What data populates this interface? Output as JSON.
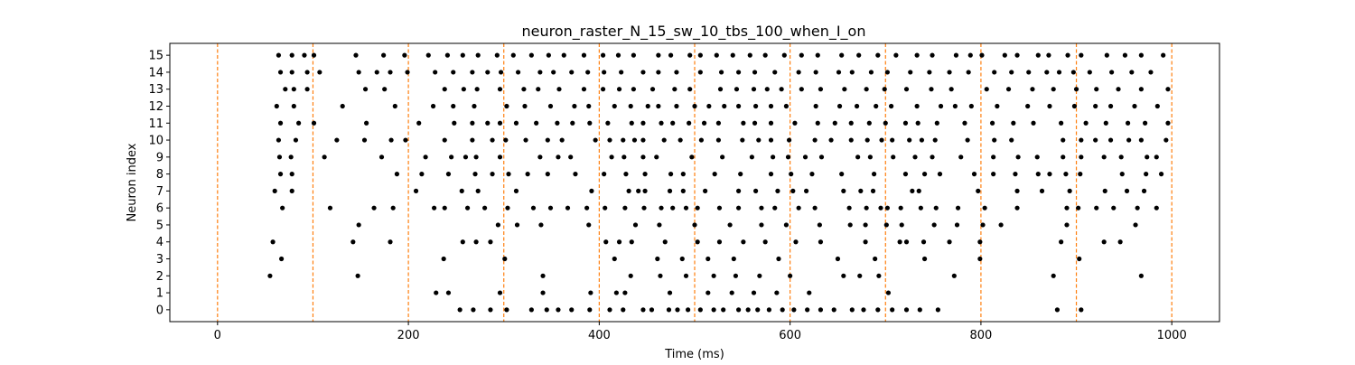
{
  "chart_data": {
    "type": "scatter",
    "title": "neuron_raster_N_15_sw_10_tbs_100_when_I_on",
    "xlabel": "Time (ms)",
    "ylabel": "Neuron index",
    "xlim": [
      -50,
      1050
    ],
    "ylim": [
      -0.7,
      15.7
    ],
    "x_ticks": [
      0,
      200,
      400,
      600,
      800,
      1000
    ],
    "y_ticks": [
      0,
      1,
      2,
      3,
      4,
      5,
      6,
      7,
      8,
      9,
      10,
      11,
      12,
      13,
      14,
      15
    ],
    "grid": false,
    "legend": "none",
    "vertical_lines": [
      0,
      100,
      200,
      300,
      400,
      500,
      600,
      700,
      800,
      900,
      1000
    ],
    "colors": {
      "points": "#000000",
      "vertical_lines": "#ff7f0e",
      "axes": "#000000"
    },
    "series": [
      {
        "values": [
          {
            "neuron": 0,
            "times": [
              254,
              268,
              286,
              303,
              329,
              345,
              357,
              371,
              390,
              411,
              425,
              446,
              455,
              473,
              482,
              493,
              506,
              520,
              530,
              546,
              556,
              566,
              578,
              592,
              604,
              618,
              632,
              646,
              665,
              677,
              692,
              707,
              722,
              736,
              755,
              880,
              905
            ]
          },
          {
            "neuron": 1,
            "times": [
              229,
              242,
              296,
              341,
              391,
              418,
              427,
              474,
              514,
              539,
              562,
              586,
              620,
              703
            ]
          },
          {
            "neuron": 2,
            "times": [
              55,
              147,
              341,
              433,
              464,
              491,
              520,
              543,
              568,
              600,
              656,
              673,
              693,
              772,
              876,
              968
            ]
          },
          {
            "neuron": 3,
            "times": [
              67,
              237,
              301,
              416,
              461,
              487,
              514,
              541,
              588,
              650,
              689,
              741,
              799,
              903
            ]
          },
          {
            "neuron": 4,
            "times": [
              58,
              142,
              181,
              257,
              271,
              286,
              407,
              421,
              434,
              469,
              503,
              526,
              551,
              574,
              606,
              632,
              679,
              715,
              722,
              740,
              767,
              799,
              884,
              929,
              946
            ]
          },
          {
            "neuron": 5,
            "times": [
              148,
              294,
              314,
              339,
              389,
              438,
              463,
              500,
              537,
              570,
              596,
              631,
              663,
              679,
              701,
              717,
              751,
              775,
              802,
              821,
              890,
              962
            ]
          },
          {
            "neuron": 6,
            "times": [
              68,
              118,
              164,
              184,
              227,
              238,
              262,
              280,
              304,
              331,
              349,
              367,
              387,
              406,
              427,
              447,
              465,
              477,
              491,
              503,
              526,
              546,
              570,
              584,
              609,
              626,
              662,
              680,
              695,
              702,
              716,
              737,
              753,
              776,
              804,
              838,
              890,
              902,
              921,
              939,
              964,
              984
            ]
          },
          {
            "neuron": 7,
            "times": [
              60,
              78,
              208,
              256,
              273,
              313,
              392,
              431,
              441,
              448,
              474,
              488,
              511,
              546,
              564,
              587,
              603,
              617,
              656,
              674,
              687,
              728,
              735,
              797,
              838,
              864,
              893,
              930,
              953,
              971
            ]
          },
          {
            "neuron": 8,
            "times": [
              66,
              78,
              188,
              214,
              242,
              270,
              288,
              305,
              325,
              346,
              375,
              405,
              428,
              448,
              475,
              488,
              521,
              548,
              580,
              601,
              623,
              654,
              688,
              721,
              741,
              757,
              793,
              813,
              836,
              860,
              872,
              889,
              904,
              948,
              973,
              989
            ]
          },
          {
            "neuron": 9,
            "times": [
              65,
              77,
              112,
              172,
              218,
              245,
              260,
              271,
              296,
              338,
              357,
              370,
              413,
              426,
              446,
              460,
              497,
              529,
              560,
              582,
              598,
              616,
              633,
              671,
              684,
              708,
              731,
              749,
              779,
              813,
              839,
              859,
              886,
              905,
              929,
              947,
              974,
              984
            ]
          },
          {
            "neuron": 10,
            "times": [
              64,
              82,
              125,
              154,
              182,
              197,
              238,
              267,
              288,
              302,
              323,
              346,
              361,
              396,
              411,
              425,
              437,
              446,
              468,
              485,
              507,
              525,
              550,
              567,
              580,
              599,
              626,
              643,
              664,
              681,
              696,
              707,
              725,
              738,
              752,
              786,
              814,
              832,
              886,
              905,
              920,
              936,
              955,
              968,
              994
            ]
          },
          {
            "neuron": 11,
            "times": [
              66,
              85,
              101,
              156,
              211,
              248,
              267,
              283,
              296,
              313,
              334,
              356,
              372,
              390,
              409,
              434,
              446,
              465,
              477,
              494,
              510,
              525,
              551,
              563,
              580,
              605,
              629,
              647,
              664,
              683,
              700,
              721,
              734,
              754,
              783,
              812,
              834,
              855,
              884,
              910,
              931,
              954,
              972,
              996
            ]
          },
          {
            "neuron": 12,
            "times": [
              62,
              80,
              131,
              186,
              226,
              247,
              269,
              303,
              322,
              349,
              374,
              389,
              416,
              433,
              451,
              462,
              481,
              500,
              515,
              531,
              546,
              564,
              580,
              596,
              627,
              652,
              670,
              690,
              706,
              733,
              758,
              773,
              790,
              817,
              849,
              872,
              898,
              920,
              936,
              961,
              985
            ]
          },
          {
            "neuron": 13,
            "times": [
              71,
              80,
              94,
              155,
              175,
              238,
              258,
              272,
              296,
              321,
              336,
              358,
              384,
              404,
              421,
              436,
              456,
              479,
              495,
              527,
              544,
              562,
              576,
              591,
              612,
              632,
              657,
              680,
              699,
              722,
              748,
              769,
              806,
              829,
              854,
              876,
              900,
              921,
              944,
              968,
              996
            ]
          },
          {
            "neuron": 14,
            "times": [
              66,
              78,
              94,
              107,
              148,
              167,
              181,
              199,
              228,
              247,
              267,
              283,
              297,
              315,
              338,
              352,
              371,
              388,
              405,
              423,
              446,
              462,
              481,
              506,
              528,
              546,
              563,
              584,
              609,
              627,
              651,
              665,
              685,
              702,
              726,
              746,
              767,
              787,
              814,
              832,
              850,
              869,
              882,
              897,
              914,
              937,
              958,
              978
            ]
          },
          {
            "neuron": 15,
            "times": [
              64,
              78,
              91,
              101,
              145,
              174,
              196,
              221,
              241,
              257,
              273,
              293,
              310,
              329,
              347,
              363,
              384,
              404,
              420,
              436,
              462,
              475,
              495,
              506,
              523,
              540,
              558,
              574,
              594,
              612,
              629,
              654,
              672,
              692,
              711,
              733,
              749,
              774,
              789,
              801,
              825,
              838,
              860,
              871,
              891,
              905,
              932,
              951,
              968,
              991
            ]
          }
        ]
      }
    ]
  }
}
